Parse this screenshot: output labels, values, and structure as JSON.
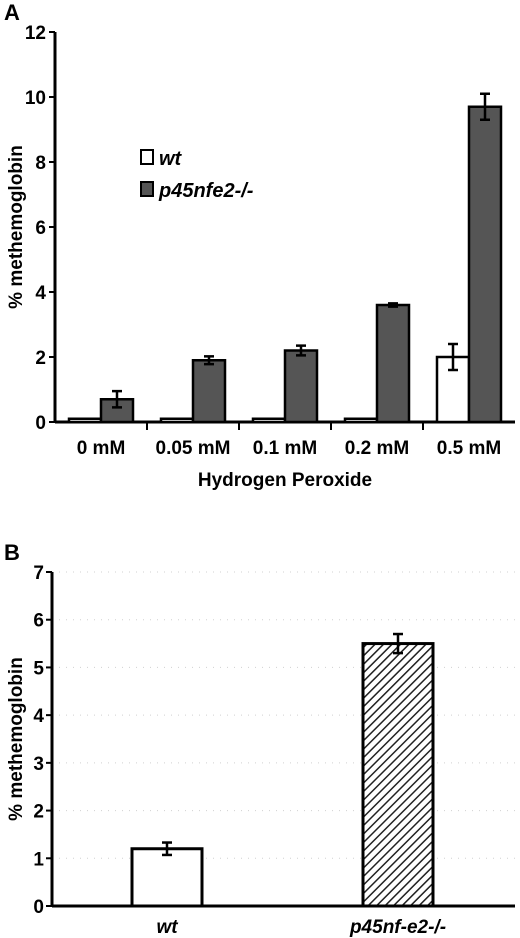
{
  "chart_data": [
    {
      "panel": "A",
      "type": "bar",
      "xlabel": "Hydrogen Peroxide",
      "ylabel": "% methemoglobin",
      "ylim": [
        0,
        12
      ],
      "yticks": [
        0,
        2,
        4,
        6,
        8,
        10,
        12
      ],
      "categories": [
        "0 mM",
        "0.05 mM",
        "0.1 mM",
        "0.2 mM",
        "0.5 mM"
      ],
      "legend_position": "left-center",
      "series": [
        {
          "name": "wt",
          "color": "#ffffff",
          "values": [
            0.1,
            0.1,
            0.1,
            0.1,
            2.0
          ],
          "errors": [
            0,
            0,
            0,
            0,
            0.4
          ]
        },
        {
          "name": "p45nfe2-/-",
          "color": "#555555",
          "values": [
            0.7,
            1.9,
            2.2,
            3.6,
            9.7
          ],
          "errors": [
            0.25,
            0.12,
            0.15,
            0.05,
            0.4
          ]
        }
      ]
    },
    {
      "panel": "B",
      "type": "bar",
      "xlabel": "",
      "ylabel": "% methemoglobin",
      "ylim": [
        0,
        7
      ],
      "yticks": [
        0,
        1,
        2,
        3,
        4,
        5,
        6,
        7
      ],
      "categories": [
        "wt",
        "p45nf-e2-/-"
      ],
      "series": [
        {
          "name": "",
          "values": [
            1.2,
            5.5
          ],
          "errors": [
            0.13,
            0.2
          ],
          "fills": [
            "#ffffff",
            "hatch"
          ]
        }
      ]
    }
  ]
}
